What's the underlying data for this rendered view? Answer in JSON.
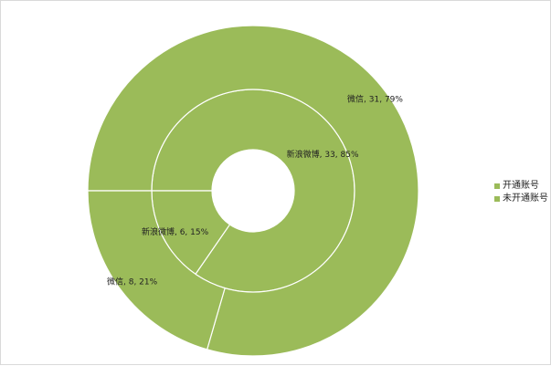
{
  "colors": {
    "slice_fill": "#9bbb59",
    "separator": "#ffffff",
    "text": "#222222"
  },
  "legend": {
    "items": [
      {
        "label": "开通账号",
        "color": "#9bbb59"
      },
      {
        "label": "未开通账号",
        "color": "#9bbb59"
      }
    ],
    "placement": "right"
  },
  "chart_data": {
    "type": "pie",
    "variant": "doughnut",
    "title": "",
    "series": [
      {
        "name": "开通账号",
        "ring": "inner",
        "categories": [
          "新浪微博",
          "新浪微博"
        ],
        "values": [
          33,
          6
        ],
        "labels": [
          "新浪微博, 33, 85%",
          "新浪微博, 6, 15%"
        ]
      },
      {
        "name": "未开通账号",
        "ring": "outer",
        "categories": [
          "微信",
          "微信"
        ],
        "values": [
          31,
          8
        ],
        "labels": [
          "微信, 31, 79%",
          "微信, 8, 21%"
        ]
      }
    ]
  }
}
